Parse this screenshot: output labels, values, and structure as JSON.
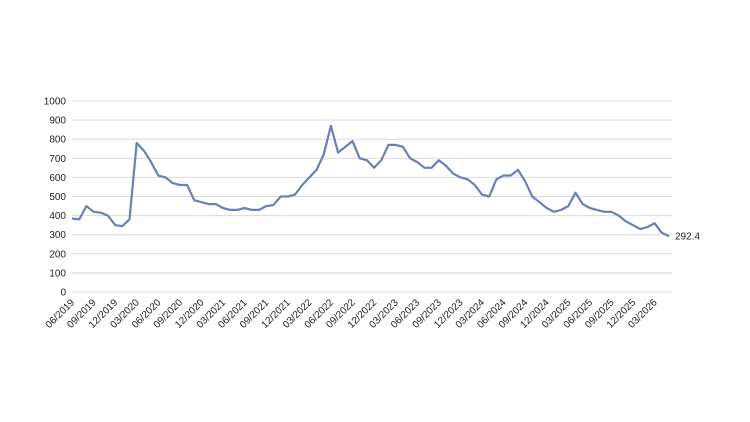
{
  "chart_data": {
    "type": "line",
    "color": "#6a7fb3",
    "grid": true,
    "ylim": [
      0,
      1000
    ],
    "yticks": [
      0,
      100,
      200,
      300,
      400,
      500,
      600,
      700,
      800,
      900,
      1000
    ],
    "categories": [
      "06/2019",
      null,
      null,
      "09/2019",
      null,
      null,
      "12/2019",
      null,
      null,
      "03/2020",
      null,
      null,
      "06/2020",
      null,
      null,
      "09/2020",
      null,
      null,
      "12/2020",
      null,
      null,
      "03/2021",
      null,
      null,
      "06/2021",
      null,
      null,
      "09/2021",
      null,
      null,
      "12/2021",
      null,
      null,
      "03/2022",
      null,
      null,
      "06/2022",
      null,
      null,
      "09/2022",
      null,
      null,
      "12/2022",
      null,
      null,
      "03/2023",
      null,
      null,
      "06/2023",
      null,
      null,
      "09/2023",
      null,
      null,
      "12/2023",
      null,
      null,
      "03/2024",
      null,
      null,
      "06/2024",
      null,
      null,
      "09/2024",
      null,
      null,
      "12/2024",
      null,
      null,
      "03/2025",
      null,
      null,
      "06/2025",
      null,
      null,
      "09/2025",
      null,
      null,
      "12/2025",
      null,
      null,
      "03/2026",
      null,
      null
    ],
    "values": [
      385,
      380,
      450,
      420,
      415,
      400,
      350,
      345,
      380,
      780,
      740,
      680,
      610,
      600,
      570,
      560,
      560,
      480,
      470,
      460,
      460,
      440,
      430,
      430,
      440,
      430,
      430,
      450,
      455,
      500,
      500,
      510,
      560,
      600,
      640,
      720,
      870,
      730,
      760,
      790,
      700,
      690,
      650,
      690,
      770,
      770,
      760,
      700,
      680,
      650,
      650,
      690,
      660,
      620,
      600,
      590,
      560,
      510,
      500,
      590,
      610,
      610,
      640,
      580,
      500,
      470,
      440,
      420,
      430,
      450,
      520,
      460,
      440,
      430,
      420,
      420,
      400,
      370,
      350,
      330,
      340,
      360,
      310,
      292.4
    ]
  }
}
